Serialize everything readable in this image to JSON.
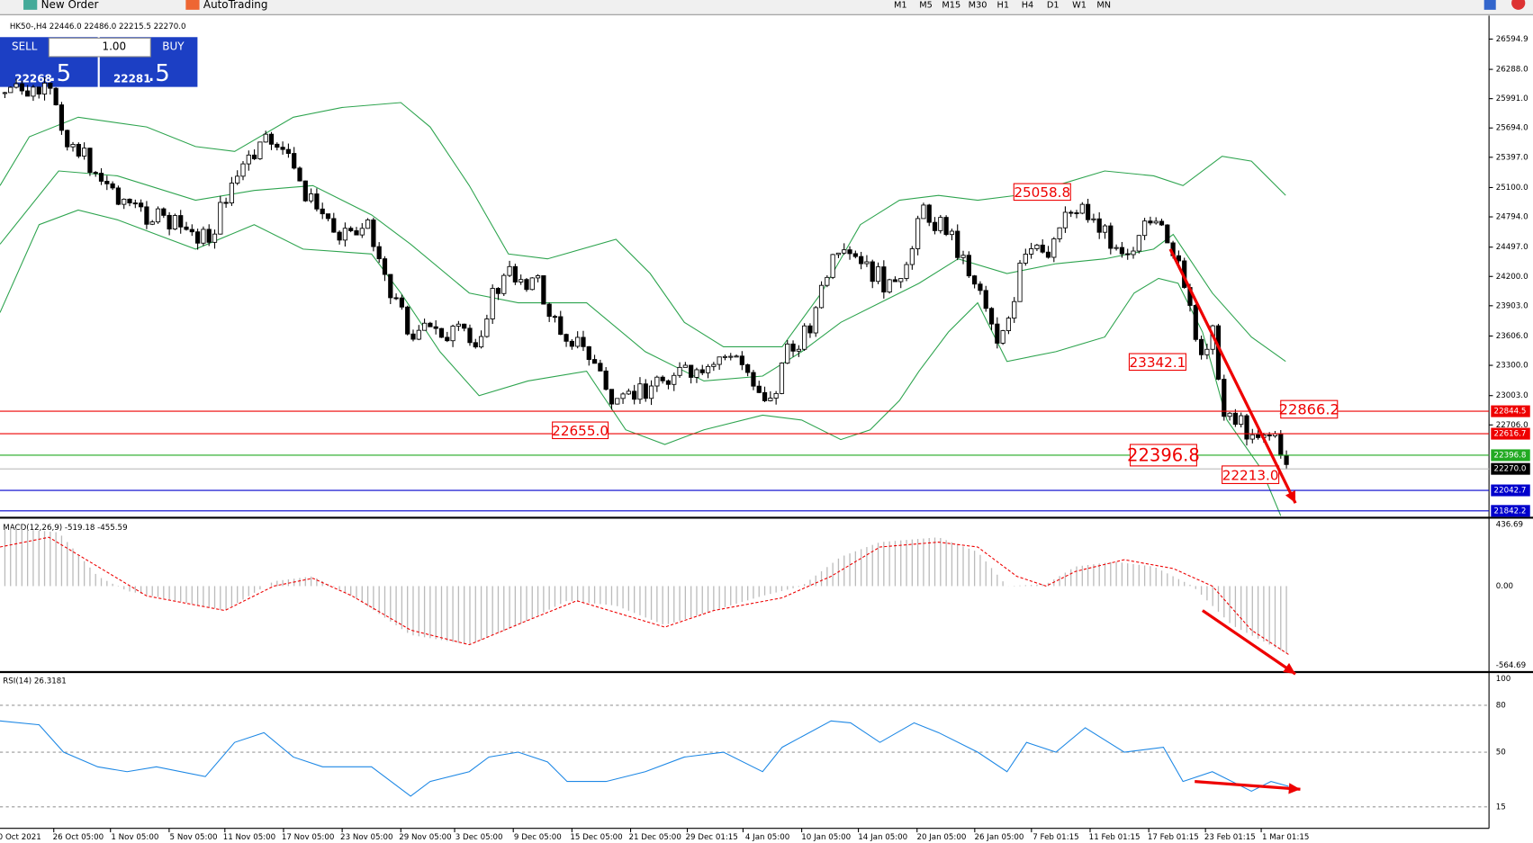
{
  "toolbar": {
    "new_order": "New Order",
    "autotrading": "AutoTrading",
    "timeframes": [
      "M1",
      "M5",
      "M15",
      "M30",
      "H1",
      "H4",
      "D1",
      "W1",
      "MN"
    ]
  },
  "trade_panel": {
    "sell": "SELL",
    "buy": "BUY",
    "lot": "1.00",
    "sell_price_main": "22268",
    "sell_price_pip": ".5",
    "buy_price_main": "22281",
    "buy_price_pip": ".5"
  },
  "chart": {
    "title": "HK50-,H4  22446.0 22486.0 22215.5 22270.0",
    "price_axis": [
      "26594.9",
      "26288.0",
      "25991.0",
      "25694.0",
      "25397.0",
      "25100.0",
      "24794.0",
      "24497.0",
      "24200.0",
      "23903.0",
      "23606.0",
      "23300.0",
      "23003.0",
      "22706.0"
    ],
    "level_tags": [
      "22844.5",
      "22616.7",
      "22396.8",
      "22270.0",
      "22042.7",
      "21842.2"
    ],
    "annotations": [
      "25058.8",
      "23342.1",
      "22866.2",
      "22655.0",
      "22396.8",
      "22213.0"
    ],
    "macd": {
      "label": "MACD(12,26,9) -519.18 -455.59",
      "axis": [
        "436.69",
        "0.00",
        "-564.69"
      ]
    },
    "rsi": {
      "label": "RSI(14) 26.3181",
      "axis": [
        "100",
        "80",
        "50",
        "15"
      ]
    },
    "time_axis": [
      "0 Oct 2021",
      "26 Oct 05:00",
      "1 Nov 05:00",
      "5 Nov 05:00",
      "11 Nov 05:00",
      "17 Nov 05:00",
      "23 Nov 05:00",
      "29 Nov 05:00",
      "3 Dec 05:00",
      "9 Dec 05:00",
      "15 Dec 05:00",
      "21 Dec 05:00",
      "29 Dec 01:15",
      "4 Jan 05:00",
      "10 Jan 05:00",
      "14 Jan 05:00",
      "20 Jan 05:00",
      "26 Jan 05:00",
      "7 Feb 01:15",
      "11 Feb 01:15",
      "17 Feb 01:15",
      "23 Feb 01:15",
      "1 Mar 01:15"
    ]
  }
}
